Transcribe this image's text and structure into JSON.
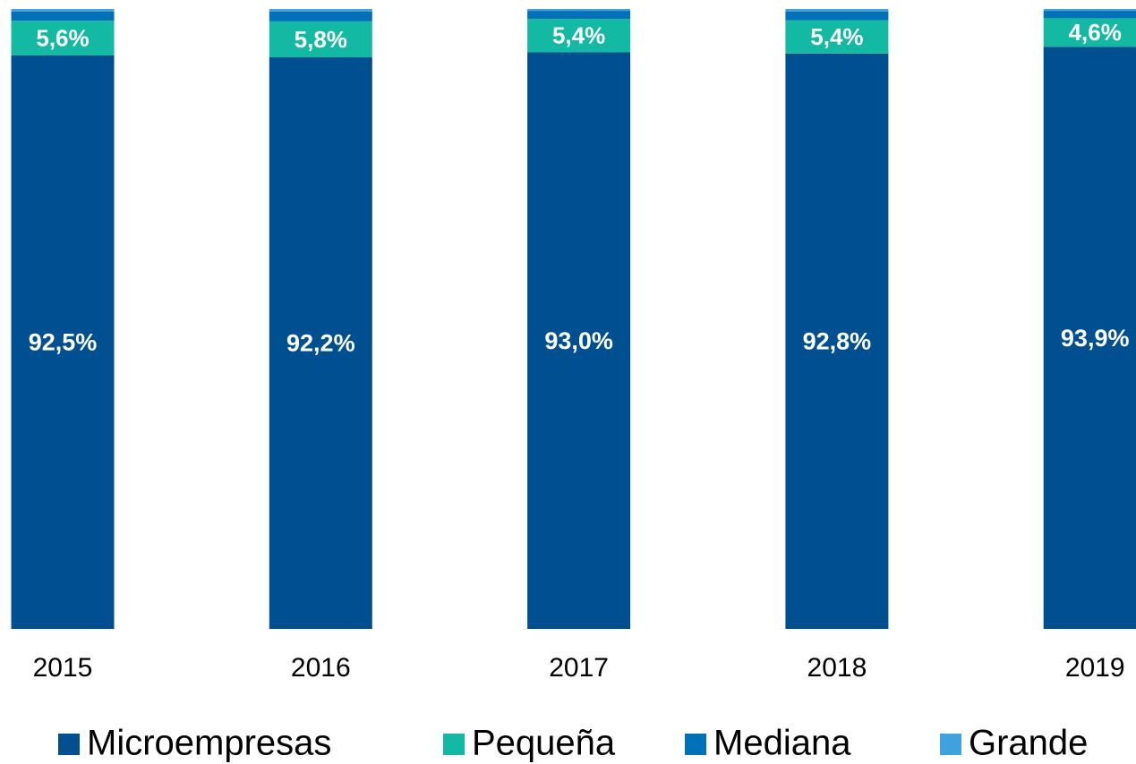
{
  "chart_data": {
    "type": "stacked_bar",
    "categories": [
      "2015",
      "2016",
      "2017",
      "2018",
      "2019"
    ],
    "ylim": [
      0,
      100
    ],
    "legend": "bottom",
    "series": [
      {
        "name": "Microempresas",
        "color": "#004f91",
        "values": [
          92.5,
          92.2,
          93.0,
          92.8,
          93.9
        ],
        "value_labels": [
          "92,5%",
          "92,2%",
          "93,0%",
          "92,8%",
          "93,9%"
        ]
      },
      {
        "name": "Pequeña",
        "color": "#13b9a2",
        "values": [
          5.6,
          5.8,
          5.4,
          5.4,
          4.6
        ],
        "value_labels": [
          "5,6%",
          "5,8%",
          "5,4%",
          "5,4%",
          "4,6%"
        ]
      },
      {
        "name": "Mediana",
        "color": "#0070b8",
        "values": [
          1.5,
          1.6,
          1.3,
          1.4,
          1.2
        ]
      },
      {
        "name": "Grande",
        "color": "#3fa2da",
        "values": [
          0.4,
          0.4,
          0.3,
          0.4,
          0.3
        ]
      }
    ]
  }
}
